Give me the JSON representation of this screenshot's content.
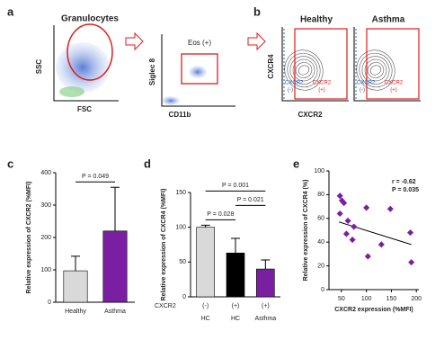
{
  "panel_labels": [
    "a",
    "b",
    "c",
    "d",
    "e"
  ],
  "panel_a": {
    "title": "Granulocytes",
    "y_label": "SSC",
    "x_label": "FSC",
    "gate_label": "Eos (+)",
    "y2_label": "Siglec 8",
    "x2_label": "CD11b"
  },
  "panel_b": {
    "groups": [
      "Healthy",
      "Asthma"
    ],
    "y_label": "CXCR4",
    "x_label": "CXCR2",
    "gate_neg": [
      "CXCR2",
      "(-)"
    ],
    "gate_pos": [
      "CXCR2",
      "(+)"
    ]
  },
  "chart_data": [
    {
      "type": "bar",
      "categories": [
        "Healthy",
        "Asthma"
      ],
      "values": [
        97,
        220
      ],
      "errors": [
        45,
        135
      ],
      "colors": [
        "#d9d9d9",
        "#7b1fa2"
      ],
      "ylim": [
        0,
        400
      ],
      "yticks": [
        0,
        100,
        200,
        300,
        400
      ],
      "y_label": "Relative expression of CXCR2 (%MFI)",
      "annotations": [
        "P = 0.049"
      ]
    },
    {
      "type": "bar",
      "row_label": "CXCR2",
      "categories": [
        "(-)",
        "(+)",
        "(+)"
      ],
      "groups": [
        "HC",
        "HC",
        "Asthma"
      ],
      "values": [
        100,
        63,
        40
      ],
      "errors": [
        3,
        21,
        13
      ],
      "colors": [
        "#d9d9d9",
        "#000000",
        "#7b1fa2"
      ],
      "ylim": [
        0,
        150
      ],
      "yticks": [
        0,
        50,
        100,
        150
      ],
      "y_label": "Relative expression of CXCR4 (%MFI)",
      "annotations": [
        "P = 0.028",
        "P = 0.021",
        "P = 0.001"
      ]
    },
    {
      "type": "scatter",
      "x": [
        47,
        47,
        51,
        55,
        60,
        63,
        72,
        75,
        100,
        103,
        130,
        148,
        188,
        190
      ],
      "values": [
        64,
        79,
        75,
        73,
        47,
        58,
        42,
        53,
        69,
        28,
        38,
        68,
        48,
        23
      ],
      "color": "#7b1fa2",
      "trendline": {
        "x": [
          45,
          190
        ],
        "y": [
          57,
          38
        ]
      },
      "xlim": [
        25,
        205
      ],
      "xticks": [
        50,
        100,
        150,
        200
      ],
      "ylim": [
        0,
        100
      ],
      "yticks": [
        0,
        20,
        40,
        60,
        80,
        100
      ],
      "x_label": "CXCR2 expression (%MFI)",
      "y_label": "Relative expression of CXCR4 (%)",
      "annotations": [
        "r = -0.62",
        "P = 0.035"
      ]
    }
  ]
}
